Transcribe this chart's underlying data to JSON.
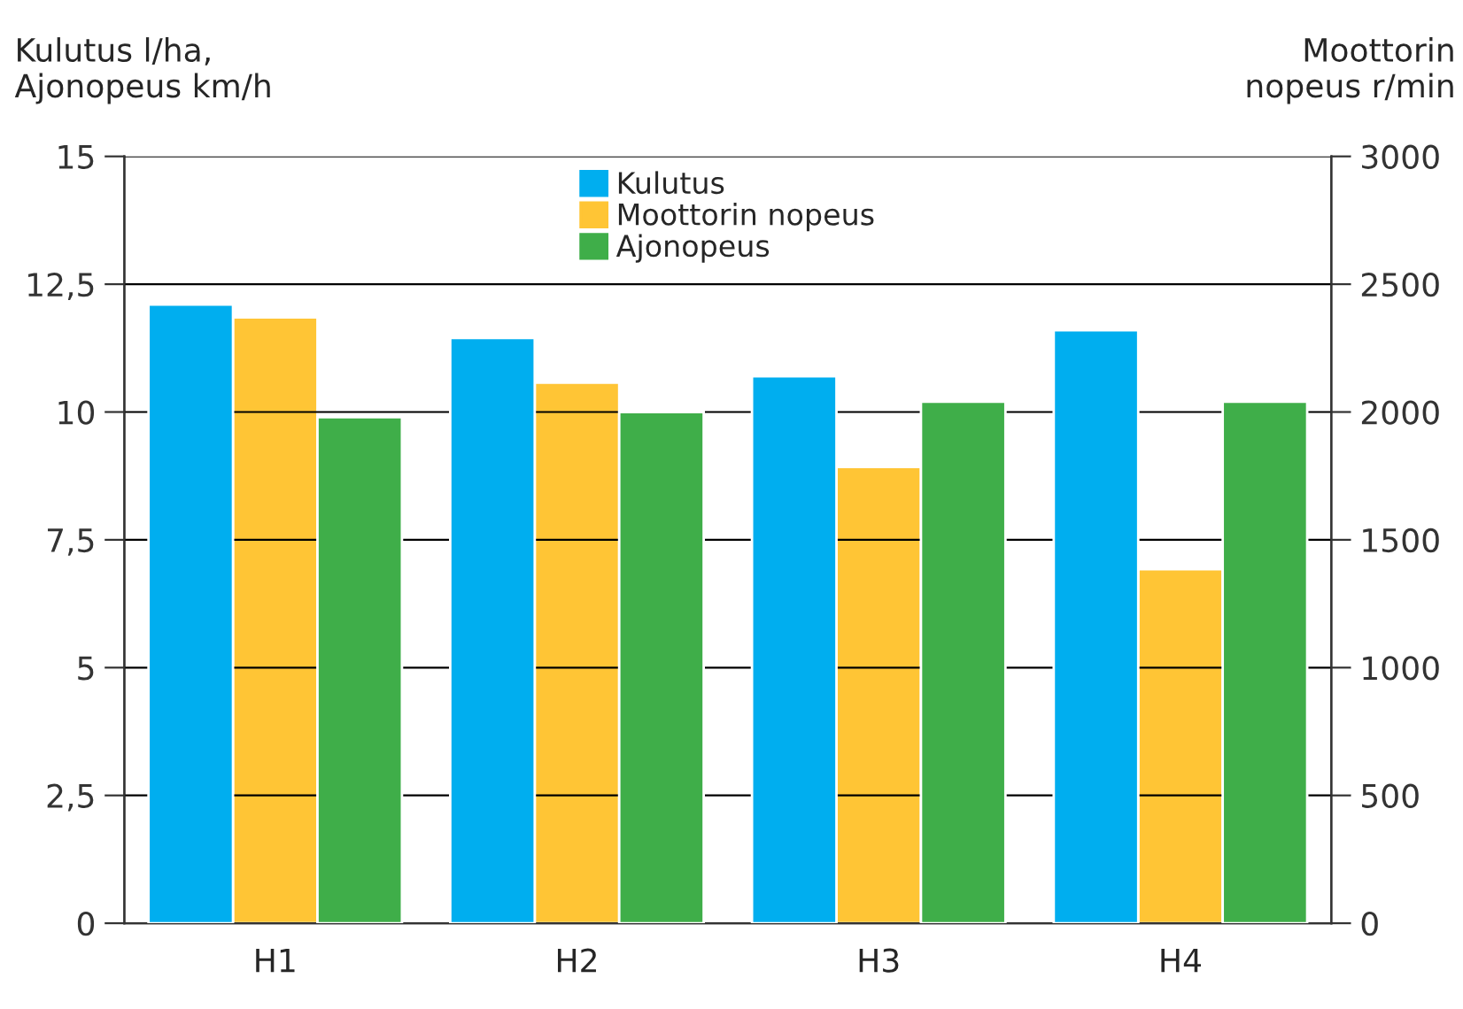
{
  "chart_data": {
    "type": "bar",
    "ylabel": "Kulutus l/ha,\nAjonopeus km/h",
    "y2label": "Moottorin\nnopeus r/min",
    "categories": [
      "H1",
      "H2",
      "H3",
      "H4"
    ],
    "series": [
      {
        "name": "Kulutus",
        "color": "#00aeef",
        "values": [
          12.1,
          11.45,
          10.7,
          11.6
        ]
      },
      {
        "name": "Moottorin nopeus",
        "color": "#ffc535",
        "axis": "y2",
        "values": [
          2370,
          2115,
          1785,
          1385
        ]
      },
      {
        "name": "Ajonopeus",
        "color": "#3fae49",
        "values": [
          9.9,
          10.0,
          10.2,
          10.2
        ]
      }
    ],
    "ylim": [
      0,
      15
    ],
    "yticks": [
      0,
      {
        "value": 2.5,
        "label": "2,5"
      },
      5,
      {
        "value": 7.5,
        "label": "7,5"
      },
      10,
      {
        "value": 12.5,
        "label": "12,5"
      },
      15
    ],
    "y2lim": [
      0,
      3000
    ],
    "y2ticks": [
      0,
      500,
      1000,
      1500,
      2000,
      2500,
      3000
    ],
    "grid": "y",
    "legend": "top"
  }
}
